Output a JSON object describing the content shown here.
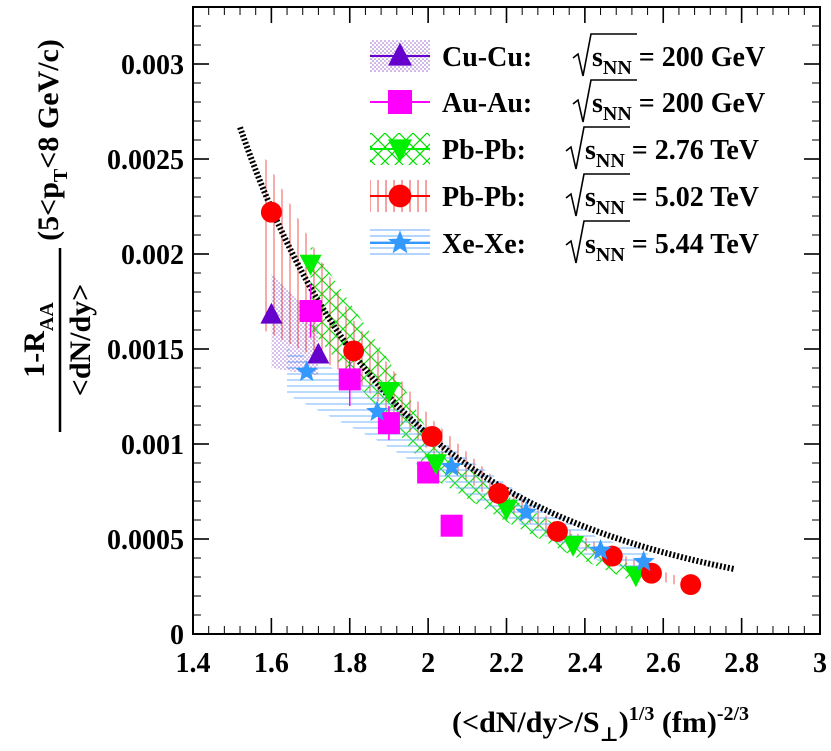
{
  "chart_data": {
    "type": "scatter",
    "title": "",
    "xlabel": {
      "open": "(<dN/dy>/S",
      "sub": "⊥",
      "close": ")",
      "exp": "1/3",
      "unit": " (fm)",
      "unit_exp": "-2/3"
    },
    "ylabel": {
      "numerator": "1-R",
      "numerator_sub": "AA",
      "denominator": "<dN/dy>",
      "range_open": "(5<p",
      "range_sub": "T",
      "range_close": "<8 GeV/c)"
    },
    "xlim": [
      1.4,
      3.0
    ],
    "ylim": [
      0,
      0.0033
    ],
    "x_ticks": [
      {
        "v": 1.4,
        "label": "1.4"
      },
      {
        "v": 1.6,
        "label": "1.6"
      },
      {
        "v": 1.8,
        "label": "1.8"
      },
      {
        "v": 2.0,
        "label": "2"
      },
      {
        "v": 2.2,
        "label": "2.2"
      },
      {
        "v": 2.4,
        "label": "2.4"
      },
      {
        "v": 2.6,
        "label": "2.6"
      },
      {
        "v": 2.8,
        "label": "2.8"
      },
      {
        "v": 3.0,
        "label": "3"
      }
    ],
    "y_ticks": [
      {
        "v": 0,
        "label": "0"
      },
      {
        "v": 0.0005,
        "label": "0.0005"
      },
      {
        "v": 0.001,
        "label": "0.001"
      },
      {
        "v": 0.0015,
        "label": "0.0015"
      },
      {
        "v": 0.002,
        "label": "0.002"
      },
      {
        "v": 0.0025,
        "label": "0.0025"
      },
      {
        "v": 0.003,
        "label": "0.003"
      }
    ],
    "legend_position": "top-right",
    "series": [
      {
        "name": "Cu-Cu",
        "energy_value": "200 GeV",
        "marker": "triangle-up",
        "color": "#6600cc",
        "band_color": "#9966cc",
        "band_style": "dots",
        "x": [
          1.6,
          1.72
        ],
        "y": [
          0.00168,
          0.00147
        ],
        "band_x": [
          1.6,
          1.72
        ],
        "band_low": [
          0.0014,
          0.00136
        ],
        "band_high": [
          0.0019,
          0.00164
        ]
      },
      {
        "name": "Au-Au",
        "energy_value": "200 GeV",
        "marker": "square",
        "color": "#ff00ff",
        "band_color": "#ff00ff",
        "band_style": "none",
        "x": [
          1.7,
          1.8,
          1.9,
          2.0,
          2.06
        ],
        "y": [
          0.0017,
          0.00134,
          0.00111,
          0.00085,
          0.00057
        ],
        "yerr": [
          0.00014,
          0.00014,
          9e-05,
          5e-05,
          4e-05
        ]
      },
      {
        "name": "Pb-Pb",
        "energy_value": "2.76 TeV",
        "marker": "triangle-down",
        "color": "#00ee00",
        "band_color": "#00dd00",
        "band_style": "cross",
        "x": [
          1.7,
          1.9,
          2.02,
          2.2,
          2.37,
          2.53
        ],
        "y": [
          0.00195,
          0.00128,
          0.0009,
          0.00066,
          0.00047,
          0.00031
        ],
        "band_x": [
          1.7,
          1.9,
          2.02,
          2.2,
          2.37,
          2.53
        ],
        "band_low": [
          0.0016,
          0.00112,
          0.00081,
          0.00059,
          0.00041,
          0.00027
        ],
        "band_high": [
          0.00205,
          0.00144,
          0.00099,
          0.00073,
          0.00052,
          0.00035
        ]
      },
      {
        "name": "Pb-Pb",
        "energy_value": "5.02 TeV",
        "marker": "circle",
        "color": "#ff0000",
        "band_color": "#ee3333",
        "band_style": "vertical",
        "x": [
          1.6,
          1.81,
          2.01,
          2.18,
          2.33,
          2.47,
          2.57,
          2.67
        ],
        "y": [
          0.00222,
          0.00149,
          0.00104,
          0.00074,
          0.00054,
          0.00041,
          0.00032,
          0.00026
        ],
        "xerr": [
          0.02,
          0.0,
          0.0,
          0.0,
          0.0,
          0.0,
          0.0,
          0.0
        ],
        "band_x": [
          1.58,
          1.81,
          2.01,
          2.18,
          2.33,
          2.47,
          2.57,
          2.67
        ],
        "band_low": [
          0.0016,
          0.00135,
          0.00095,
          0.00068,
          0.0005,
          0.00038,
          0.00029,
          0.00024
        ],
        "band_high": [
          0.00252,
          0.00165,
          0.00113,
          0.0008,
          0.00058,
          0.00044,
          0.00035,
          0.00028
        ]
      },
      {
        "name": "Xe-Xe",
        "energy_value": "5.44 TeV",
        "marker": "star",
        "color": "#3399ff",
        "band_color": "#66aaff",
        "band_style": "horizontal",
        "x": [
          1.69,
          1.87,
          2.06,
          2.25,
          2.44,
          2.55
        ],
        "y": [
          0.00138,
          0.00117,
          0.00088,
          0.00064,
          0.00044,
          0.00038
        ],
        "band_x": [
          1.64,
          1.87,
          2.06,
          2.25,
          2.44,
          2.56
        ],
        "band_low": [
          0.00126,
          0.00102,
          0.00078,
          0.00056,
          0.00038,
          0.00032
        ],
        "band_high": [
          0.0015,
          0.0013,
          0.00098,
          0.00072,
          0.0005,
          0.00044
        ]
      }
    ],
    "fit_curve": {
      "style": "dashed",
      "color": "#000000",
      "model": "power-law",
      "x_range": [
        1.52,
        2.78
      ],
      "anchor": [
        1.6,
        0.00224
      ],
      "exponent": -3.4
    },
    "legend_label_sqrt": "s",
    "legend_label_sub": "NN",
    "legend_label_eq": "="
  }
}
